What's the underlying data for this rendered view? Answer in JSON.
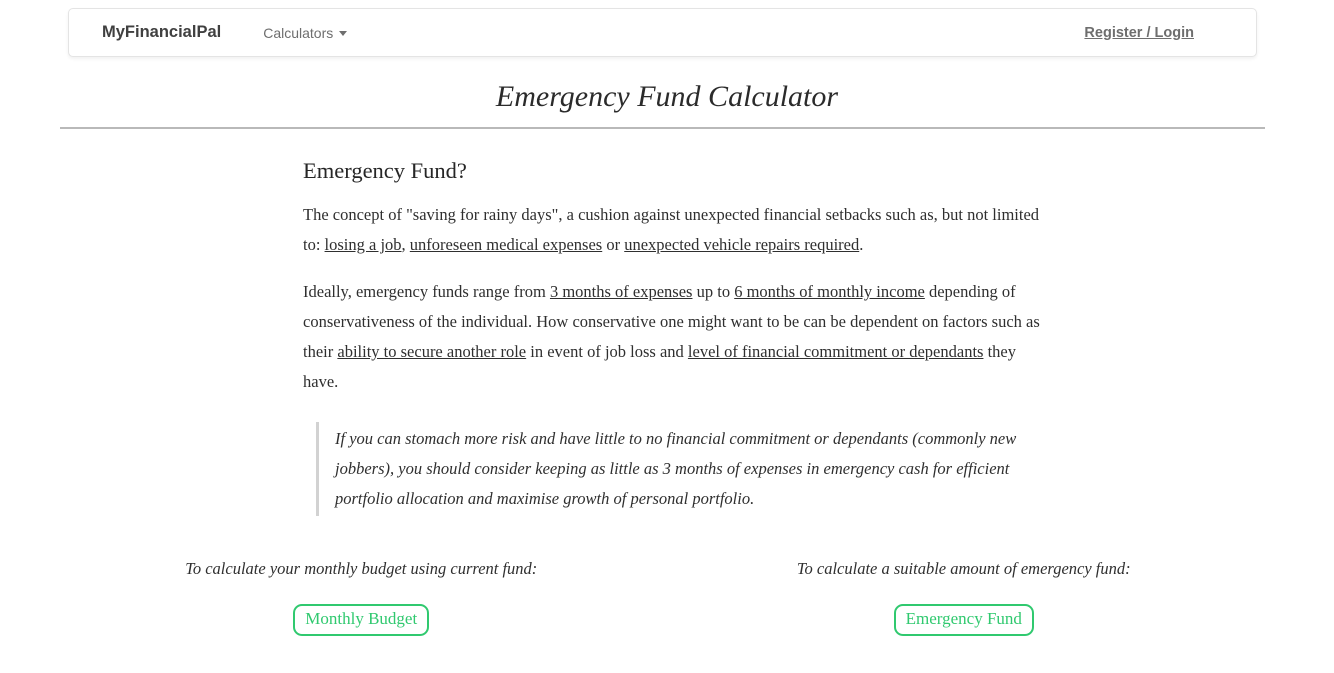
{
  "colors": {
    "accent_green": "#30c96f",
    "body_text": "#2f2f2f",
    "nav_text": "#6e6e6e",
    "brand_text": "#404040",
    "divider": "#b9b9b9",
    "quote_border": "#d2d2d2",
    "navbar_border": "#e4e4e4"
  },
  "navbar": {
    "brand": "MyFinancialPal",
    "menu_label": "Calculators",
    "auth_label": "Register / Login"
  },
  "page": {
    "title": "Emergency Fund Calculator"
  },
  "article": {
    "heading": "Emergency Fund?",
    "paragraph1": [
      {
        "t": "The concept of \"saving for rainy days\", a cushion against unexpected financial setbacks such as, but not limited to: "
      },
      {
        "t": "losing a job",
        "u": true
      },
      {
        "t": ", "
      },
      {
        "t": "unforeseen medical expenses",
        "u": true
      },
      {
        "t": " or "
      },
      {
        "t": "unexpected vehicle repairs required",
        "u": true
      },
      {
        "t": "."
      }
    ],
    "paragraph2": [
      {
        "t": "Ideally, emergency funds range from "
      },
      {
        "t": "3 months of expenses",
        "u": true
      },
      {
        "t": " up to "
      },
      {
        "t": "6 months of monthly income",
        "u": true
      },
      {
        "t": " depending of conservativeness of the individual. How conservative one might want to be can be dependent on factors such as their "
      },
      {
        "t": "ability to secure another role",
        "u": true
      },
      {
        "t": " in event of job loss and "
      },
      {
        "t": "level of financial commitment or dependants",
        "u": true
      },
      {
        "t": " they have."
      }
    ],
    "quote": "If you can stomach more risk and have little to no financial commitment or dependants (commonly new jobbers), you should consider keeping as little as 3 months of expenses in emergency cash for efficient portfolio allocation and maximise growth of personal portfolio."
  },
  "actions": {
    "monthly_budget": {
      "caption": "To calculate your monthly budget using current fund:",
      "button_label": "Monthly Budget"
    },
    "emergency_fund": {
      "caption": "To calculate a suitable amount of emergency fund:",
      "button_label": "Emergency Fund"
    }
  }
}
